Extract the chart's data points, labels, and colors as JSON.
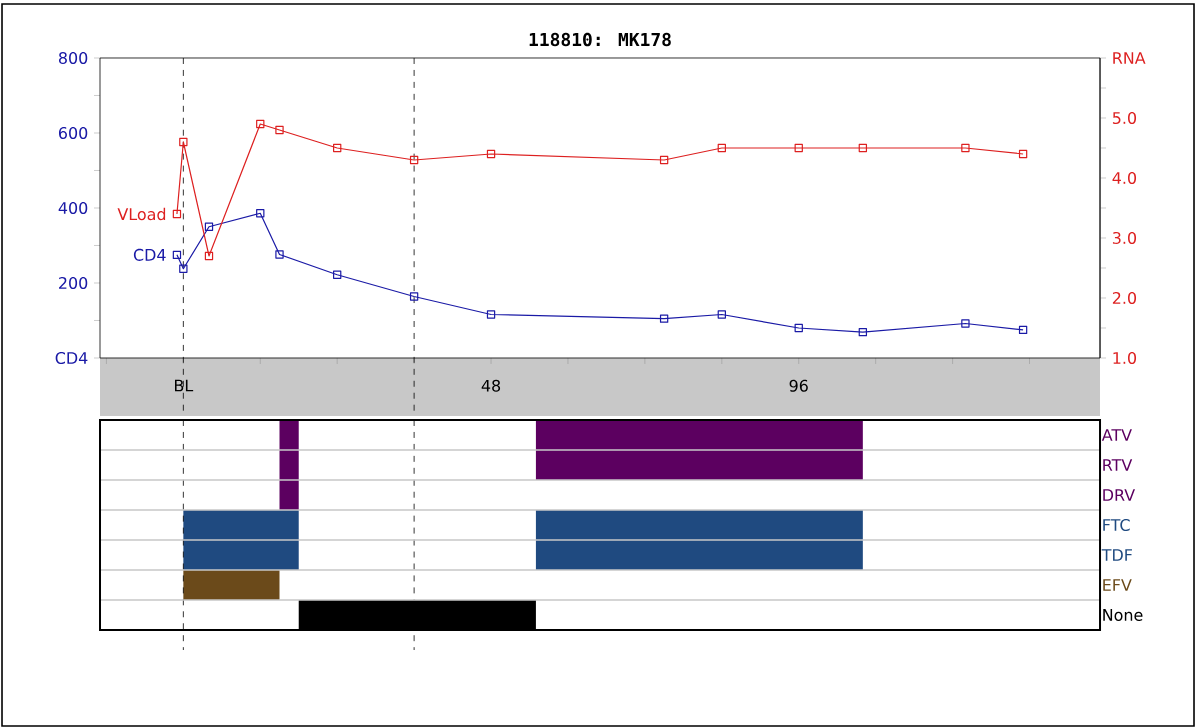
{
  "chart_data": [
    {
      "type": "line",
      "title": "118810: MK178",
      "x": [
        -1,
        0,
        4,
        12,
        15,
        24,
        36,
        48,
        75,
        84,
        96,
        106,
        122,
        131
      ],
      "series": [
        {
          "name": "CD4",
          "color": "#1a1aa6",
          "values": [
            275,
            238,
            350,
            386,
            276,
            222,
            164,
            116,
            105,
            116,
            80,
            69,
            92,
            75
          ]
        },
        {
          "name": "VLoad",
          "color": "#dd2020",
          "axis": "y2",
          "values": [
            3.4,
            4.6,
            2.7,
            4.9,
            4.8,
            4.5,
            4.3,
            4.4,
            4.3,
            4.5,
            4.5,
            4.5,
            4.5,
            4.4
          ]
        }
      ],
      "xlim": [
        -13,
        143
      ],
      "xticks": [
        {
          "value": -12,
          "label": null
        },
        {
          "value": 0,
          "label": "BL"
        },
        {
          "value": 12,
          "label": null
        },
        {
          "value": 24,
          "label": null
        },
        {
          "value": 36,
          "label": null
        },
        48,
        {
          "value": 60,
          "label": null
        },
        {
          "value": 72,
          "label": null
        },
        {
          "value": 84,
          "label": null
        },
        96,
        {
          "value": 108,
          "label": null
        },
        {
          "value": 120,
          "label": null
        },
        {
          "value": 132,
          "label": null
        }
      ],
      "ylim": [
        0,
        800
      ],
      "yticks": [
        {
          "value": 0,
          "label": "CD4"
        },
        {
          "value": 100,
          "label": null
        },
        200,
        {
          "value": 300,
          "label": null
        },
        400,
        {
          "value": 500,
          "label": null
        },
        600,
        {
          "value": 700,
          "label": null
        },
        800
      ],
      "y2lim": [
        1,
        6
      ],
      "y2ticks": [
        {
          "value": 1,
          "label": "1.0"
        },
        {
          "value": 1.5,
          "label": null
        },
        {
          "value": 2,
          "label": "2.0"
        },
        {
          "value": 2.5,
          "label": null
        },
        {
          "value": 3,
          "label": "3.0"
        },
        {
          "value": 3.5,
          "label": null
        },
        {
          "value": 4,
          "label": "4.0"
        },
        {
          "value": 4.5,
          "label": null
        },
        {
          "value": 5,
          "label": "5.0"
        },
        {
          "value": 5.5,
          "label": null
        },
        {
          "value": 6,
          "label": "RNA"
        }
      ],
      "marker": "square",
      "ref_lines": [
        {
          "axis": "x",
          "value": 0,
          "color": "#000000",
          "line_style": "dashed"
        },
        {
          "axis": "x",
          "value": 36,
          "color": "#000000",
          "line_style": "dashed"
        }
      ]
    },
    {
      "type": "bar",
      "orientation": "horizontal",
      "categories": [
        "ATV",
        "RTV",
        "DRV",
        "FTC",
        "TDF",
        "EFV",
        "None"
      ],
      "series": [
        {
          "base": [
            15,
            15,
            15,
            0,
            0,
            0,
            18
          ],
          "values": [
            3,
            3,
            3,
            18,
            18,
            15,
            37
          ],
          "colors": [
            "#5c0060",
            "#5c0060",
            "#5c0060",
            "#1f4a80",
            "#1f4a80",
            "#6b4a1a",
            "#000000"
          ]
        },
        {
          "base": [
            55,
            55,
            null,
            55,
            55,
            null,
            null
          ],
          "values": [
            51,
            51,
            null,
            51,
            51,
            null,
            null
          ],
          "colors": [
            "#5c0060",
            "#5c0060",
            null,
            "#1f4a80",
            "#1f4a80",
            null,
            null
          ]
        }
      ],
      "xlim": [
        -13,
        143
      ],
      "tick_labels": "y",
      "grid": "y",
      "ref_lines": [
        {
          "axis": "x",
          "value": 0,
          "color": "#000000",
          "line_style": "dashed"
        },
        {
          "axis": "x",
          "value": 36,
          "color": "#000000",
          "line_style": "dashed"
        }
      ]
    }
  ]
}
